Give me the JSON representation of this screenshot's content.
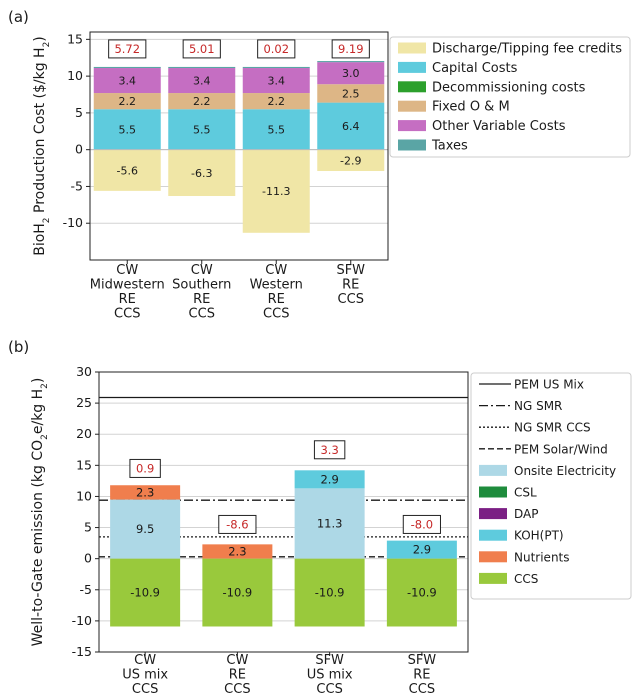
{
  "chart_data": [
    {
      "panel_label": "(a)",
      "type": "bar",
      "stacked": true,
      "ylabel_main": "BioH",
      "ylabel_sub": "2",
      "ylabel_rest": " Production Cost ($/kg H",
      "ylabel_sub2": "2",
      "ylabel_close": ")",
      "ylim": [
        -15,
        16
      ],
      "yticks": [
        -10,
        -5,
        0,
        5,
        10,
        15
      ],
      "grid": true,
      "legend_position": "right-outside",
      "categories": [
        [
          "CW",
          "Midwestern",
          "RE",
          "CCS"
        ],
        [
          "CW",
          "Southern",
          "RE",
          "CCS"
        ],
        [
          "CW",
          "Western",
          "RE",
          "CCS"
        ],
        [
          "SFW",
          "RE",
          "CCS"
        ]
      ],
      "series": [
        {
          "name": "Discharge/Tipping fee credits",
          "color": "#f0e6a6",
          "values": [
            -5.6,
            -6.3,
            -11.3,
            -2.9
          ]
        },
        {
          "name": "Capital Costs",
          "color": "#5ecbdd",
          "values": [
            5.5,
            5.5,
            5.5,
            6.4
          ]
        },
        {
          "name": "Decommissioning costs",
          "color": "#2ca02c",
          "values": [
            0,
            0,
            0,
            0
          ]
        },
        {
          "name": "Fixed O & M",
          "color": "#ddb686",
          "values": [
            2.2,
            2.2,
            2.2,
            2.5
          ]
        },
        {
          "name": "Other Variable Costs",
          "color": "#c56ec2",
          "values": [
            3.4,
            3.4,
            3.4,
            3.0
          ]
        },
        {
          "name": "Taxes",
          "color": "#5aa5a5",
          "values": [
            0.15,
            0.15,
            0.15,
            0.15
          ]
        }
      ],
      "segment_labels": [
        [
          "-5.6",
          "5.5",
          "2.2",
          "3.4"
        ],
        [
          "-6.3",
          "5.5",
          "2.2",
          "3.4"
        ],
        [
          "-11.3",
          "5.5",
          "2.2",
          "3.4"
        ],
        [
          "-2.9",
          "6.4",
          "2.5",
          "3.0"
        ]
      ],
      "totals": [
        "5.72",
        "5.01",
        "0.02",
        "9.19"
      ],
      "total_label_y": 13.7
    },
    {
      "panel_label": "(b)",
      "type": "bar",
      "stacked": true,
      "ylabel_main": "Well-to-Gate emission (kg CO",
      "ylabel_sub": "2",
      "ylabel_rest": "e/kg H",
      "ylabel_sub2": "2",
      "ylabel_close": ")",
      "ylim": [
        -15,
        30
      ],
      "yticks": [
        -15,
        -10,
        -5,
        0,
        5,
        10,
        15,
        20,
        25,
        30
      ],
      "grid": true,
      "legend_position": "right-outside",
      "categories": [
        [
          "CW",
          "US mix",
          "CCS"
        ],
        [
          "CW",
          "RE",
          "CCS"
        ],
        [
          "SFW",
          "US mix",
          "CCS"
        ],
        [
          "SFW",
          "RE",
          "CCS"
        ]
      ],
      "reference_lines": [
        {
          "name": "PEM US Mix",
          "value": 25.9,
          "style": "solid"
        },
        {
          "name": "NG SMR",
          "value": 9.4,
          "style": "dashdot"
        },
        {
          "name": "NG SMR CCS",
          "value": 3.5,
          "style": "dotted"
        },
        {
          "name": "PEM Solar/Wind",
          "value": 0.3,
          "style": "dashed"
        }
      ],
      "series": [
        {
          "name": "Onsite Electricity",
          "color": "#add8e6",
          "values": [
            9.5,
            0,
            11.3,
            0
          ]
        },
        {
          "name": "CSL",
          "color": "#1e8c3c",
          "values": [
            0,
            0,
            0,
            0
          ]
        },
        {
          "name": "DAP",
          "color": "#7b1f84",
          "values": [
            0,
            0,
            0,
            0
          ]
        },
        {
          "name": "KOH(PT)",
          "color": "#5ecbdd",
          "values": [
            0,
            0,
            2.9,
            2.9
          ]
        },
        {
          "name": "Nutrients",
          "color": "#f07e4d",
          "values": [
            2.3,
            2.3,
            0,
            0
          ]
        },
        {
          "name": "CCS",
          "color": "#99c93c",
          "values": [
            -10.9,
            -10.9,
            -10.9,
            -10.9
          ]
        }
      ],
      "segment_labels": [
        [
          "9.5",
          "2.3",
          "-10.9"
        ],
        [
          "2.3",
          "-10.9"
        ],
        [
          "11.3",
          "2.9",
          "-10.9"
        ],
        [
          "2.9",
          "-10.9"
        ]
      ],
      "totals": [
        "0.9",
        "-8.6",
        "3.3",
        "-8.0"
      ],
      "total_label_y": [
        14.5,
        5.5,
        17.5,
        5.5
      ]
    }
  ]
}
